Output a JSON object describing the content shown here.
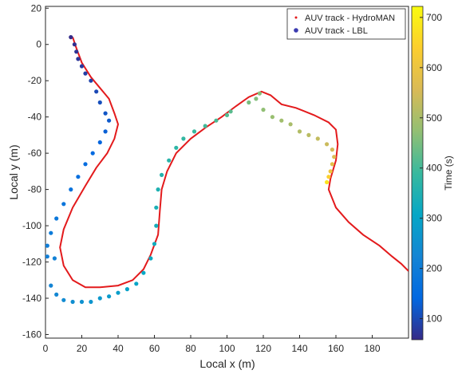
{
  "chart_data": {
    "type": "scatter",
    "xlabel": "Local x (m)",
    "ylabel": "Local y (m)",
    "xlim": [
      0,
      200
    ],
    "ylim": [
      -162,
      21
    ],
    "xticks": [
      0,
      20,
      40,
      60,
      80,
      100,
      120,
      140,
      160,
      180
    ],
    "yticks": [
      20,
      0,
      -20,
      -40,
      -60,
      -80,
      -100,
      -120,
      -140,
      -160
    ],
    "grid": false,
    "legend_position": "top-right",
    "colors": {
      "hydroman": "#e31a1c",
      "lbl_marker": "#3b3bb0"
    },
    "colorbar": {
      "label": "Time (s)",
      "range": [
        58,
        722
      ],
      "ticks": [
        100,
        200,
        300,
        400,
        500,
        600,
        700
      ],
      "colormap": "parula"
    },
    "series": [
      {
        "name": "AUV track - HydroMAN",
        "style": "line",
        "color": "#e31a1c",
        "points": [
          [
            15,
            4
          ],
          [
            17,
            -2
          ],
          [
            20,
            -10
          ],
          [
            25,
            -18
          ],
          [
            30,
            -24
          ],
          [
            35,
            -30
          ],
          [
            38,
            -38
          ],
          [
            40,
            -44
          ],
          [
            38,
            -52
          ],
          [
            34,
            -60
          ],
          [
            28,
            -68
          ],
          [
            22,
            -78
          ],
          [
            15,
            -90
          ],
          [
            10,
            -102
          ],
          [
            8,
            -112
          ],
          [
            10,
            -122
          ],
          [
            15,
            -130
          ],
          [
            22,
            -134
          ],
          [
            30,
            -134
          ],
          [
            40,
            -133
          ],
          [
            48,
            -130
          ],
          [
            54,
            -124
          ],
          [
            58,
            -116
          ],
          [
            62,
            -105
          ],
          [
            63,
            -92
          ],
          [
            64,
            -80
          ],
          [
            67,
            -70
          ],
          [
            72,
            -60
          ],
          [
            80,
            -52
          ],
          [
            88,
            -46
          ],
          [
            97,
            -40
          ],
          [
            105,
            -34
          ],
          [
            112,
            -29
          ],
          [
            119,
            -26
          ],
          [
            124,
            -28
          ],
          [
            130,
            -33
          ],
          [
            138,
            -35
          ],
          [
            148,
            -39
          ],
          [
            156,
            -43
          ],
          [
            160,
            -47
          ],
          [
            161,
            -55
          ],
          [
            160,
            -64
          ],
          [
            157,
            -74
          ],
          [
            156,
            -80
          ],
          [
            160,
            -90
          ],
          [
            167,
            -98
          ],
          [
            175,
            -105
          ],
          [
            184,
            -111
          ],
          [
            191,
            -117
          ],
          [
            196,
            -121
          ],
          [
            200,
            -125
          ]
        ]
      },
      {
        "name": "AUV track - LBL",
        "style": "markers",
        "colored_by": "Time (s)",
        "points": [
          {
            "x": 14,
            "y": 4,
            "t": 60
          },
          {
            "x": 16,
            "y": 0,
            "t": 65
          },
          {
            "x": 17,
            "y": -4,
            "t": 70
          },
          {
            "x": 18,
            "y": -8,
            "t": 75
          },
          {
            "x": 20,
            "y": -12,
            "t": 80
          },
          {
            "x": 22,
            "y": -16,
            "t": 85
          },
          {
            "x": 25,
            "y": -20,
            "t": 92
          },
          {
            "x": 28,
            "y": -26,
            "t": 100
          },
          {
            "x": 30,
            "y": -32,
            "t": 108
          },
          {
            "x": 33,
            "y": -38,
            "t": 115
          },
          {
            "x": 35,
            "y": -42,
            "t": 122
          },
          {
            "x": 33,
            "y": -48,
            "t": 130
          },
          {
            "x": 30,
            "y": -54,
            "t": 138
          },
          {
            "x": 26,
            "y": -60,
            "t": 146
          },
          {
            "x": 22,
            "y": -66,
            "t": 154
          },
          {
            "x": 18,
            "y": -73,
            "t": 162
          },
          {
            "x": 14,
            "y": -80,
            "t": 170
          },
          {
            "x": 10,
            "y": -88,
            "t": 178
          },
          {
            "x": 6,
            "y": -96,
            "t": 186
          },
          {
            "x": 3,
            "y": -104,
            "t": 194
          },
          {
            "x": 1,
            "y": -111,
            "t": 202
          },
          {
            "x": 1,
            "y": -117,
            "t": 208
          },
          {
            "x": 5,
            "y": -118,
            "t": 212
          },
          {
            "x": 3,
            "y": -133,
            "t": 222
          },
          {
            "x": 6,
            "y": -138,
            "t": 230
          },
          {
            "x": 10,
            "y": -141,
            "t": 238
          },
          {
            "x": 15,
            "y": -142,
            "t": 246
          },
          {
            "x": 20,
            "y": -142,
            "t": 254
          },
          {
            "x": 25,
            "y": -142,
            "t": 262
          },
          {
            "x": 30,
            "y": -140,
            "t": 270
          },
          {
            "x": 35,
            "y": -139,
            "t": 278
          },
          {
            "x": 40,
            "y": -137,
            "t": 286
          },
          {
            "x": 45,
            "y": -135,
            "t": 294
          },
          {
            "x": 50,
            "y": -132,
            "t": 302
          },
          {
            "x": 54,
            "y": -126,
            "t": 310
          },
          {
            "x": 58,
            "y": -118,
            "t": 318
          },
          {
            "x": 60,
            "y": -110,
            "t": 326
          },
          {
            "x": 61,
            "y": -100,
            "t": 334
          },
          {
            "x": 61,
            "y": -90,
            "t": 342
          },
          {
            "x": 62,
            "y": -80,
            "t": 350
          },
          {
            "x": 64,
            "y": -72,
            "t": 358
          },
          {
            "x": 68,
            "y": -64,
            "t": 366
          },
          {
            "x": 72,
            "y": -57,
            "t": 374
          },
          {
            "x": 76,
            "y": -52,
            "t": 382
          },
          {
            "x": 82,
            "y": -48,
            "t": 390
          },
          {
            "x": 88,
            "y": -45,
            "t": 398
          },
          {
            "x": 94,
            "y": -42,
            "t": 406
          },
          {
            "x": 100,
            "y": -39,
            "t": 414
          },
          {
            "x": 102,
            "y": -37,
            "t": 420
          },
          {
            "x": 112,
            "y": -32,
            "t": 450
          },
          {
            "x": 116,
            "y": -30,
            "t": 458
          },
          {
            "x": 118,
            "y": -27,
            "t": 464
          },
          {
            "x": 120,
            "y": -36,
            "t": 472
          },
          {
            "x": 125,
            "y": -40,
            "t": 480
          },
          {
            "x": 130,
            "y": -42,
            "t": 490
          },
          {
            "x": 135,
            "y": -44,
            "t": 500
          },
          {
            "x": 140,
            "y": -48,
            "t": 510
          },
          {
            "x": 145,
            "y": -50,
            "t": 520
          },
          {
            "x": 150,
            "y": -52,
            "t": 530
          },
          {
            "x": 155,
            "y": -55,
            "t": 540
          },
          {
            "x": 158,
            "y": -58,
            "t": 552
          },
          {
            "x": 159,
            "y": -62,
            "t": 564
          },
          {
            "x": 158,
            "y": -66,
            "t": 580
          },
          {
            "x": 157,
            "y": -70,
            "t": 600
          },
          {
            "x": 156,
            "y": -73,
            "t": 640
          },
          {
            "x": 155,
            "y": -76,
            "t": 680
          }
        ]
      }
    ]
  }
}
